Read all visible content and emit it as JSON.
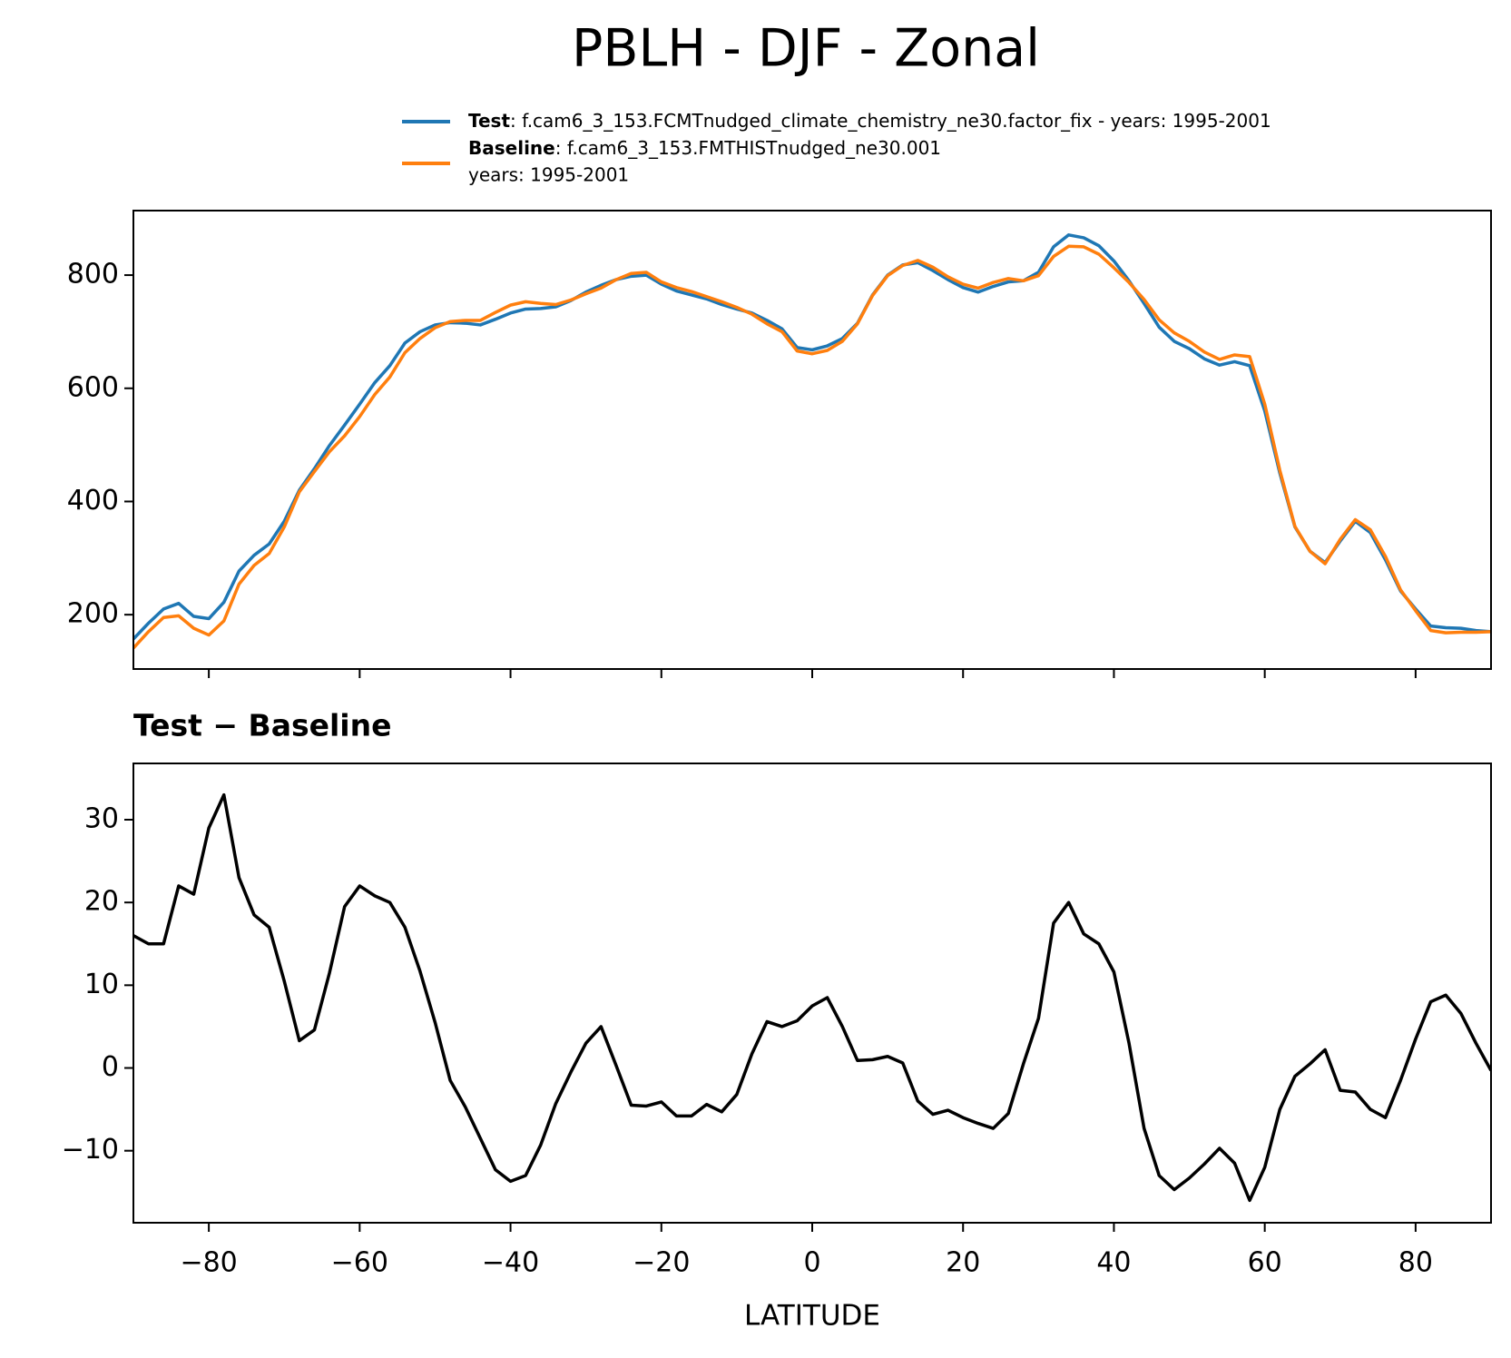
{
  "title": "PBLH - DJF - Zonal",
  "chart_data": [
    {
      "type": "line",
      "x": [
        -90,
        -88,
        -86,
        -84,
        -82,
        -80,
        -78,
        -76,
        -74,
        -72,
        -70,
        -68,
        -66,
        -64,
        -62,
        -60,
        -58,
        -56,
        -54,
        -52,
        -50,
        -48,
        -46,
        -44,
        -42,
        -40,
        -38,
        -36,
        -34,
        -32,
        -30,
        -28,
        -26,
        -24,
        -22,
        -20,
        -18,
        -16,
        -14,
        -12,
        -10,
        -8,
        -6,
        -4,
        -2,
        0,
        2,
        4,
        6,
        8,
        10,
        12,
        14,
        16,
        18,
        20,
        22,
        24,
        26,
        28,
        30,
        32,
        34,
        36,
        38,
        40,
        42,
        44,
        46,
        48,
        50,
        52,
        54,
        56,
        58,
        60,
        62,
        64,
        66,
        68,
        70,
        72,
        74,
        76,
        78,
        80,
        82,
        84,
        86,
        88,
        90
      ],
      "series": [
        {
          "name": "Test",
          "description": [
            ": f.cam6_3_153.FCMTnudged_climate_chemistry_ne30.factor_fix - years: 1995-2001"
          ],
          "color": "#1f77b4",
          "values": [
            157,
            185,
            210,
            220,
            197,
            193,
            222,
            277,
            305,
            325,
            365,
            420,
            458,
            499,
            535,
            572,
            610,
            640,
            680,
            700,
            712,
            716,
            715,
            712,
            722,
            733,
            740,
            741,
            744,
            755,
            770,
            782,
            792,
            798,
            800,
            784,
            772,
            765,
            758,
            748,
            740,
            733,
            720,
            705,
            672,
            668,
            675,
            688,
            715,
            765,
            800,
            818,
            822,
            808,
            792,
            778,
            770,
            780,
            788,
            790,
            805,
            850,
            871,
            866,
            852,
            825,
            790,
            750,
            708,
            683,
            670,
            652,
            641,
            647,
            640,
            560,
            450,
            355,
            312,
            292,
            330,
            365,
            345,
            297,
            242,
            210,
            180,
            177,
            176,
            172,
            170
          ]
        },
        {
          "name": "Baseline",
          "description": [
            ": f.cam6_3_153.FMTHISTnudged_ne30.001",
            "years: 1995-2001"
          ],
          "color": "#ff7f0e",
          "values": [
            141,
            170,
            195,
            198,
            176,
            164,
            189,
            254,
            287,
            308,
            355,
            417,
            453,
            488,
            516,
            550,
            589,
            620,
            663,
            688,
            707,
            718,
            720,
            720,
            734,
            747,
            753,
            750,
            748,
            756,
            767,
            777,
            792,
            803,
            805,
            788,
            778,
            771,
            762,
            753,
            743,
            731,
            714,
            700,
            666,
            661,
            667,
            683,
            714,
            764,
            799,
            817,
            826,
            814,
            797,
            784,
            777,
            787,
            794,
            790,
            799,
            833,
            851,
            850,
            837,
            813,
            787,
            757,
            721,
            698,
            683,
            664,
            651,
            659,
            656,
            572,
            455,
            356,
            312,
            290,
            333,
            368,
            350,
            303,
            244,
            207,
            172,
            168,
            169,
            169,
            170
          ]
        }
      ],
      "xlim": [
        -90,
        90
      ],
      "xticks": [
        -80,
        -60,
        -40,
        -20,
        0,
        20,
        40,
        60,
        80
      ],
      "xtick_labels": false,
      "ylim": [
        104,
        914
      ],
      "yticks": [
        200,
        400,
        600,
        800
      ],
      "grid": false,
      "legend": "upper right"
    },
    {
      "type": "line",
      "title": "Test − Baseline",
      "xlabel": "LATITUDE",
      "x": [
        -90,
        -88,
        -86,
        -84,
        -82,
        -80,
        -78,
        -76,
        -74,
        -72,
        -70,
        -68,
        -66,
        -64,
        -62,
        -60,
        -58,
        -56,
        -54,
        -52,
        -50,
        -48,
        -46,
        -44,
        -42,
        -40,
        -38,
        -36,
        -34,
        -32,
        -30,
        -28,
        -26,
        -24,
        -22,
        -20,
        -18,
        -16,
        -14,
        -12,
        -10,
        -8,
        -6,
        -4,
        -2,
        0,
        2,
        4,
        6,
        8,
        10,
        12,
        14,
        16,
        18,
        20,
        22,
        24,
        26,
        28,
        30,
        32,
        34,
        36,
        38,
        40,
        42,
        44,
        46,
        48,
        50,
        52,
        54,
        56,
        58,
        60,
        62,
        64,
        66,
        68,
        70,
        72,
        74,
        76,
        78,
        80,
        82,
        84,
        86,
        88,
        90
      ],
      "series": [
        {
          "color": "#000000",
          "values": [
            16,
            15,
            15,
            22,
            21,
            29,
            33,
            23,
            18.5,
            17,
            10.5,
            3.3,
            4.6,
            11.5,
            19.5,
            22,
            20.8,
            20,
            17,
            11.7,
            5.5,
            -1.5,
            -4.7,
            -8.5,
            -12.3,
            -13.7,
            -13,
            -9.3,
            -4.3,
            -0.5,
            3,
            5,
            0.3,
            -4.5,
            -4.6,
            -4.1,
            -5.8,
            -5.8,
            -4.4,
            -5.3,
            -3.2,
            1.7,
            5.6,
            5,
            5.7,
            7.5,
            8.5,
            5,
            0.9,
            1,
            1.4,
            0.6,
            -4,
            -5.6,
            -5.1,
            -6,
            -6.7,
            -7.3,
            -5.5,
            0.5,
            6,
            17.5,
            20,
            16.2,
            15,
            11.6,
            3,
            -7.3,
            -13,
            -14.7,
            -13.3,
            -11.6,
            -9.7,
            -11.5,
            -16,
            -12,
            -5,
            -1,
            0.5,
            2.2,
            -2.7,
            -2.9,
            -5,
            -6,
            -1.5,
            3.5,
            8,
            8.8,
            6.6,
            3,
            -0.3
          ]
        }
      ],
      "xlim": [
        -90,
        90
      ],
      "xticks": [
        {
          "value": -80,
          "label": "−80"
        },
        {
          "value": -60,
          "label": "−60"
        },
        {
          "value": -40,
          "label": "−40"
        },
        {
          "value": -20,
          "label": "−20"
        },
        0,
        20,
        40,
        60,
        80
      ],
      "xtick_labels": true,
      "ylim": [
        -18.7,
        36.8
      ],
      "yticks": [
        {
          "value": -10,
          "label": "−10"
        },
        0,
        10,
        20,
        30
      ],
      "grid": false
    }
  ]
}
